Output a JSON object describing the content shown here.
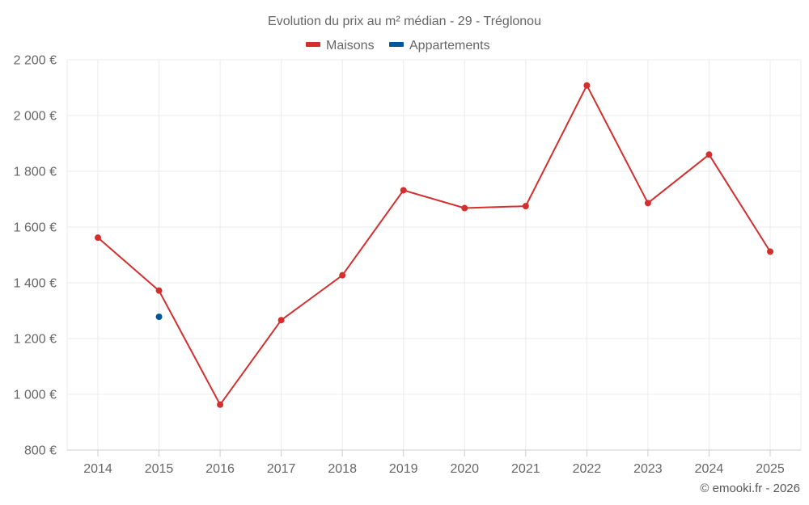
{
  "chart_data": {
    "type": "line",
    "title": "Evolution du prix au m² médian - 29 - Tréglonou",
    "xlabel": "",
    "ylabel": "",
    "categories": [
      "2014",
      "2015",
      "2016",
      "2017",
      "2018",
      "2019",
      "2020",
      "2021",
      "2022",
      "2023",
      "2024",
      "2025"
    ],
    "ylim": [
      800,
      2200
    ],
    "y_ticks": [
      800,
      1000,
      1200,
      1400,
      1600,
      1800,
      2000,
      2200
    ],
    "y_tick_labels": [
      "800 €",
      "1 000 €",
      "1 200 €",
      "1 400 €",
      "1 600 €",
      "1 800 €",
      "2 000 €",
      "2 200 €"
    ],
    "grid": true,
    "legend_position": "top-center",
    "series": [
      {
        "name": "Maisons",
        "color": "#d32f2f",
        "values": [
          1562,
          1372,
          963,
          1266,
          1427,
          1732,
          1668,
          1675,
          2108,
          1686,
          1860,
          1512
        ]
      },
      {
        "name": "Appartements",
        "color": "#01579b",
        "values": [
          null,
          1278,
          null,
          null,
          null,
          null,
          null,
          null,
          null,
          null,
          null,
          null
        ]
      }
    ],
    "credit": "© emooki.fr - 2026"
  }
}
